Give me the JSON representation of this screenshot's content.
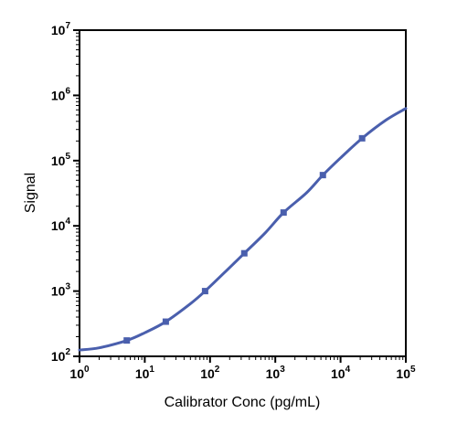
{
  "chart_data": {
    "type": "line",
    "title": "",
    "xlabel": "Calibrator Conc (pg/mL)",
    "ylabel": "Signal",
    "x_scale": "log",
    "y_scale": "log",
    "xlim": [
      1,
      100000
    ],
    "ylim": [
      100,
      10000000
    ],
    "grid": false,
    "x_ticks": [
      {
        "base": "10",
        "exp": "0"
      },
      {
        "base": "10",
        "exp": "1"
      },
      {
        "base": "10",
        "exp": "2"
      },
      {
        "base": "10",
        "exp": "3"
      },
      {
        "base": "10",
        "exp": "4"
      },
      {
        "base": "10",
        "exp": "5"
      }
    ],
    "y_ticks": [
      {
        "base": "10",
        "exp": "2"
      },
      {
        "base": "10",
        "exp": "3"
      },
      {
        "base": "10",
        "exp": "4"
      },
      {
        "base": "10",
        "exp": "5"
      },
      {
        "base": "10",
        "exp": "6"
      },
      {
        "base": "10",
        "exp": "7"
      }
    ],
    "line_color": "#4a5fad",
    "series": [
      {
        "x": [
          5.3,
          21,
          84,
          335,
          1340,
          5360,
          21400
        ],
        "y": [
          175,
          340,
          1000,
          3800,
          16000,
          60000,
          220000
        ]
      }
    ],
    "fit_curve": {
      "x": [
        1,
        2,
        5.3,
        10,
        21,
        50,
        84,
        200,
        335,
        700,
        1340,
        3000,
        5360,
        10000,
        21400,
        50000,
        100000
      ],
      "y": [
        125,
        135,
        175,
        230,
        340,
        640,
        1000,
        2300,
        3800,
        7800,
        16000,
        32000,
        60000,
        110000,
        220000,
        420000,
        630000
      ]
    }
  }
}
